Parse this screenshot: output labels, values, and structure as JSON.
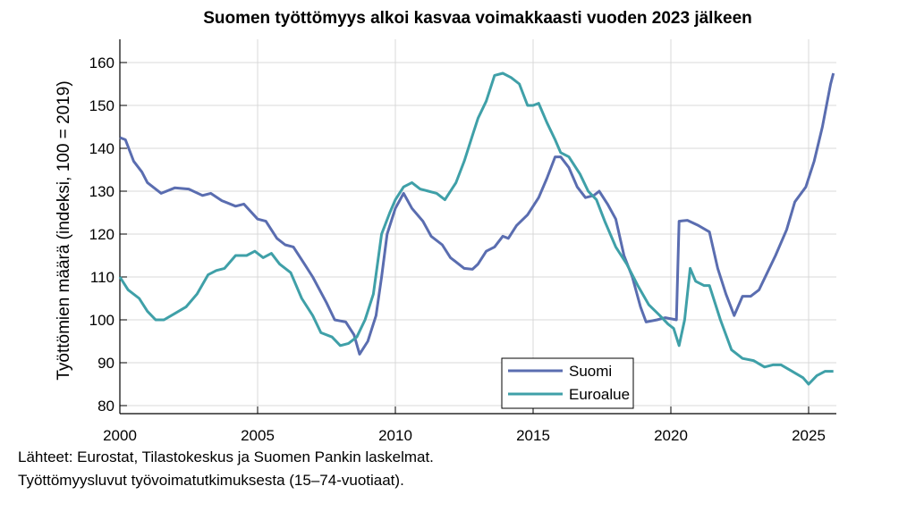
{
  "chart_data": {
    "type": "line",
    "title": "Suomen työttömyys alkoi kasvaa voimakkaasti vuoden 2023 jälkeen",
    "xlabel": "",
    "ylabel": "Työttömien määrä (indeksi, 100 = 2019)",
    "xlim": [
      2000,
      2026
    ],
    "ylim": [
      78,
      165
    ],
    "x_ticks": [
      "2000",
      "2005",
      "2010",
      "2015",
      "2020",
      "2025"
    ],
    "y_ticks": [
      "80",
      "90",
      "100",
      "110",
      "120",
      "130",
      "140",
      "150",
      "160"
    ],
    "grid": true,
    "legend_position": "lower right-center",
    "series": [
      {
        "name": "Suomi",
        "color": "#5A6DB0",
        "points": [
          [
            2000.0,
            142.5
          ],
          [
            2000.2,
            142
          ],
          [
            2000.5,
            137
          ],
          [
            2000.8,
            134.5
          ],
          [
            2001.0,
            132
          ],
          [
            2001.5,
            129.5
          ],
          [
            2002.0,
            130.8
          ],
          [
            2002.5,
            130.5
          ],
          [
            2003.0,
            129
          ],
          [
            2003.3,
            129.5
          ],
          [
            2003.7,
            127.8
          ],
          [
            2004.2,
            126.5
          ],
          [
            2004.5,
            127
          ],
          [
            2005.0,
            123.5
          ],
          [
            2005.3,
            123
          ],
          [
            2005.7,
            119
          ],
          [
            2006.0,
            117.5
          ],
          [
            2006.3,
            117
          ],
          [
            2006.7,
            113
          ],
          [
            2007.0,
            110
          ],
          [
            2007.5,
            104
          ],
          [
            2007.8,
            100
          ],
          [
            2008.2,
            99.5
          ],
          [
            2008.5,
            96.5
          ],
          [
            2008.7,
            92
          ],
          [
            2009.0,
            95
          ],
          [
            2009.3,
            101
          ],
          [
            2009.5,
            110
          ],
          [
            2009.7,
            120
          ],
          [
            2010.0,
            126
          ],
          [
            2010.3,
            129.5
          ],
          [
            2010.6,
            126
          ],
          [
            2011.0,
            123
          ],
          [
            2011.3,
            119.5
          ],
          [
            2011.7,
            117.5
          ],
          [
            2012.0,
            114.5
          ],
          [
            2012.5,
            112
          ],
          [
            2012.8,
            111.8
          ],
          [
            2013.0,
            113
          ],
          [
            2013.3,
            116
          ],
          [
            2013.6,
            117
          ],
          [
            2013.9,
            119.5
          ],
          [
            2014.1,
            119
          ],
          [
            2014.4,
            122
          ],
          [
            2014.8,
            124.5
          ],
          [
            2015.2,
            128.5
          ],
          [
            2015.5,
            133
          ],
          [
            2015.8,
            138
          ],
          [
            2016.0,
            138
          ],
          [
            2016.3,
            135.5
          ],
          [
            2016.6,
            131
          ],
          [
            2016.9,
            128.5
          ],
          [
            2017.2,
            129
          ],
          [
            2017.4,
            130
          ],
          [
            2017.7,
            127
          ],
          [
            2018.0,
            123.5
          ],
          [
            2018.3,
            115
          ],
          [
            2018.6,
            110
          ],
          [
            2018.9,
            103
          ],
          [
            2019.1,
            99.5
          ],
          [
            2019.5,
            100
          ],
          [
            2019.8,
            100.5
          ],
          [
            2020.2,
            100
          ],
          [
            2020.3,
            123
          ],
          [
            2020.6,
            123.2
          ],
          [
            2021.0,
            122
          ],
          [
            2021.4,
            120.5
          ],
          [
            2021.7,
            112
          ],
          [
            2022.0,
            106
          ],
          [
            2022.3,
            101
          ],
          [
            2022.6,
            105.5
          ],
          [
            2022.9,
            105.5
          ],
          [
            2023.2,
            107
          ],
          [
            2023.5,
            111
          ],
          [
            2023.8,
            115
          ],
          [
            2024.2,
            121
          ],
          [
            2024.5,
            127.5
          ],
          [
            2024.9,
            131
          ],
          [
            2025.2,
            137
          ],
          [
            2025.5,
            145
          ],
          [
            2025.8,
            155
          ],
          [
            2025.9,
            157.5
          ]
        ]
      },
      {
        "name": "Euroalue",
        "color": "#3FA0A8",
        "points": [
          [
            2000.0,
            110
          ],
          [
            2000.3,
            107
          ],
          [
            2000.7,
            105
          ],
          [
            2001.0,
            102
          ],
          [
            2001.3,
            100
          ],
          [
            2001.6,
            100
          ],
          [
            2002.0,
            101.5
          ],
          [
            2002.4,
            103
          ],
          [
            2002.8,
            106
          ],
          [
            2003.2,
            110.5
          ],
          [
            2003.5,
            111.5
          ],
          [
            2003.8,
            112
          ],
          [
            2004.2,
            115
          ],
          [
            2004.6,
            115
          ],
          [
            2004.9,
            116
          ],
          [
            2005.2,
            114.5
          ],
          [
            2005.5,
            115.5
          ],
          [
            2005.8,
            113
          ],
          [
            2006.2,
            111
          ],
          [
            2006.6,
            105
          ],
          [
            2007.0,
            101
          ],
          [
            2007.3,
            97
          ],
          [
            2007.7,
            96
          ],
          [
            2008.0,
            94
          ],
          [
            2008.3,
            94.5
          ],
          [
            2008.6,
            96
          ],
          [
            2008.9,
            100
          ],
          [
            2009.2,
            106
          ],
          [
            2009.5,
            120
          ],
          [
            2009.8,
            125
          ],
          [
            2010.0,
            128
          ],
          [
            2010.3,
            131
          ],
          [
            2010.6,
            132
          ],
          [
            2010.9,
            130.5
          ],
          [
            2011.2,
            130
          ],
          [
            2011.5,
            129.5
          ],
          [
            2011.8,
            128
          ],
          [
            2012.2,
            132
          ],
          [
            2012.5,
            137
          ],
          [
            2012.8,
            143
          ],
          [
            2013.0,
            147
          ],
          [
            2013.3,
            151
          ],
          [
            2013.6,
            157
          ],
          [
            2013.9,
            157.5
          ],
          [
            2014.2,
            156.5
          ],
          [
            2014.5,
            155
          ],
          [
            2014.8,
            150
          ],
          [
            2015.0,
            150
          ],
          [
            2015.2,
            150.5
          ],
          [
            2015.5,
            146
          ],
          [
            2015.8,
            142
          ],
          [
            2016.0,
            139
          ],
          [
            2016.3,
            138
          ],
          [
            2016.7,
            134
          ],
          [
            2017.0,
            130
          ],
          [
            2017.3,
            128
          ],
          [
            2017.6,
            123
          ],
          [
            2018.0,
            117
          ],
          [
            2018.4,
            113
          ],
          [
            2018.8,
            108
          ],
          [
            2019.2,
            103.5
          ],
          [
            2019.6,
            101
          ],
          [
            2019.9,
            99
          ],
          [
            2020.1,
            98
          ],
          [
            2020.3,
            94
          ],
          [
            2020.5,
            100
          ],
          [
            2020.7,
            112
          ],
          [
            2020.9,
            109
          ],
          [
            2021.2,
            108
          ],
          [
            2021.4,
            108
          ],
          [
            2021.8,
            100
          ],
          [
            2022.2,
            93
          ],
          [
            2022.6,
            91
          ],
          [
            2023.0,
            90.5
          ],
          [
            2023.4,
            89
          ],
          [
            2023.7,
            89.5
          ],
          [
            2024.0,
            89.5
          ],
          [
            2024.4,
            88
          ],
          [
            2024.8,
            86.5
          ],
          [
            2025.0,
            85
          ],
          [
            2025.3,
            87
          ],
          [
            2025.6,
            88
          ],
          [
            2025.9,
            88
          ]
        ]
      }
    ]
  },
  "footer": {
    "line1": "Lähteet: Eurostat, Tilastokeskus ja Suomen Pankin laskelmat.",
    "line2": "Työttömyysluvut työvoimatutkimuksesta (15–74-vuotiaat)."
  }
}
